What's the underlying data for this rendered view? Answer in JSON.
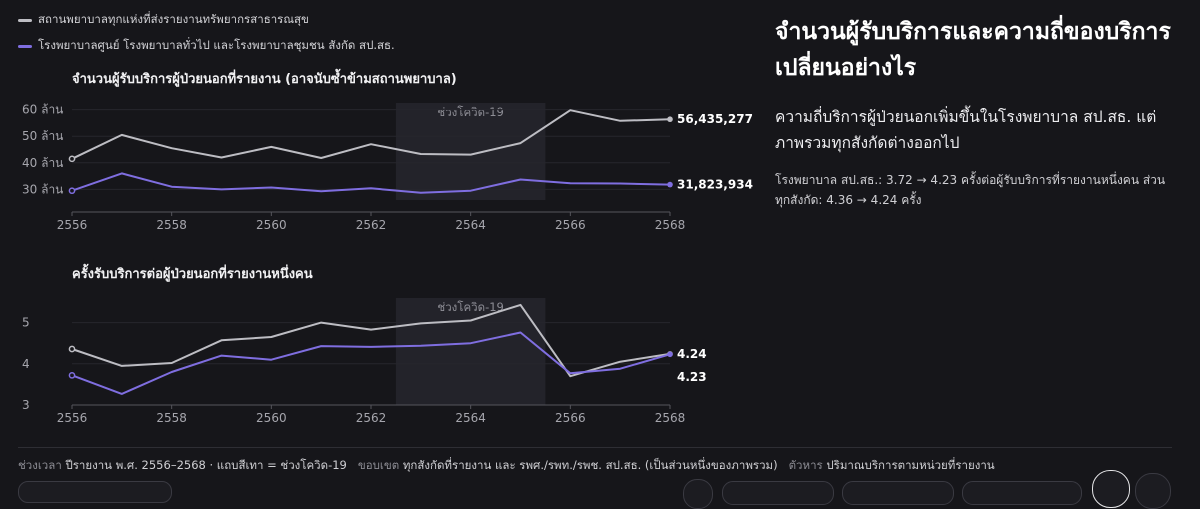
{
  "legend": {
    "items": [
      {
        "label": "สถานพยาบาลทุกแห่งที่ส่งรายงานทรัพยากรสาธารณสุข",
        "color": "#bdbdc3"
      },
      {
        "label": "โรงพยาบาลศูนย์ โรงพยาบาลทั่วไป และโรงพยาบาลชุมชน สังกัด สป.สธ.",
        "color": "#7f6ee0"
      }
    ]
  },
  "headline": "จำนวนผู้รับบริการและความถี่ของบริการเปลี่ยนอย่างไร",
  "subheadline": "ความถี่บริการผู้ป่วยนอกเพิ่มขึ้นในโรงพยาบาล สป.สธ. แต่ภาพรวมทุกสังกัดต่างออกไป",
  "note": "โรงพยาบาล สป.สธ.: 3.72 → 4.23 ครั้งต่อผู้รับบริการที่รายงานหนึ่งคน ส่วนทุกสังกัด: 4.36 → 4.24 ครั้ง",
  "footer": {
    "period_key": "ช่วงเวลา",
    "period_value": "ปีรายงาน พ.ศ. 2556–2568 · แถบสีเทา = ช่วงโควิด-19",
    "scope_key": "ขอบเขต",
    "scope_value": "ทุกสังกัดที่รายงาน และ รพศ./รพท./รพช. สป.สธ. (เป็นส่วนหนึ่งของภาพรวม)",
    "unit_key": "ตัวหาร",
    "unit_value": "ปริมาณบริการตามหน่วยที่รายงาน"
  },
  "chart_data": [
    {
      "type": "line",
      "title": "จำนวนผู้รับบริการผู้ป่วยนอกที่รายงาน (อาจนับซ้ำข้ามสถานพยาบาล)",
      "x": [
        2556,
        2557,
        2558,
        2559,
        2560,
        2561,
        2562,
        2563,
        2564,
        2565,
        2566,
        2567,
        2568
      ],
      "xticks": [
        2556,
        2558,
        2560,
        2562,
        2564,
        2566,
        2568
      ],
      "yticks": [
        30,
        40,
        50,
        60
      ],
      "ytick_labels": [
        "30 ล้าน",
        "40 ล้าน",
        "50 ล้าน",
        "60 ล้าน"
      ],
      "ylim": [
        26,
        61
      ],
      "shade": {
        "from": 2562.5,
        "to": 2565.5,
        "label": "ช่วงโควิด-19"
      },
      "series": [
        {
          "values": [
            41.5,
            50.5,
            45.5,
            42.0,
            46.0,
            41.8,
            47.0,
            43.3,
            43.1,
            47.4,
            59.8,
            55.8,
            56.4
          ],
          "color": "#bdbdc3",
          "end_label": "56,435,277"
        },
        {
          "values": [
            29.5,
            36.0,
            31.0,
            30.0,
            30.7,
            29.3,
            30.4,
            28.7,
            29.5,
            33.7,
            32.3,
            32.2,
            31.8
          ],
          "color": "#7f6ee0",
          "end_label": "31,823,934"
        }
      ]
    },
    {
      "type": "line",
      "title": "ครั้งรับบริการต่อผู้ป่วยนอกที่รายงานหนึ่งคน",
      "x": [
        2556,
        2557,
        2558,
        2559,
        2560,
        2561,
        2562,
        2563,
        2564,
        2565,
        2566,
        2567,
        2568
      ],
      "xticks": [
        2556,
        2558,
        2560,
        2562,
        2564,
        2566,
        2568
      ],
      "yticks": [
        3,
        4,
        5
      ],
      "ytick_labels": [
        "3",
        "4",
        "5"
      ],
      "ylim": [
        3,
        5.5
      ],
      "shade": {
        "from": 2562.5,
        "to": 2565.5,
        "label": "ช่วงโควิด-19"
      },
      "series": [
        {
          "values": [
            4.36,
            3.95,
            4.02,
            4.57,
            4.65,
            5.0,
            4.83,
            4.98,
            5.05,
            5.43,
            3.7,
            4.05,
            4.24
          ],
          "color": "#bdbdc3",
          "end_label": "4.24"
        },
        {
          "values": [
            3.72,
            3.27,
            3.8,
            4.2,
            4.1,
            4.43,
            4.41,
            4.44,
            4.5,
            4.76,
            3.77,
            3.88,
            4.23
          ],
          "color": "#7f6ee0",
          "end_label": "4.23"
        }
      ]
    }
  ]
}
